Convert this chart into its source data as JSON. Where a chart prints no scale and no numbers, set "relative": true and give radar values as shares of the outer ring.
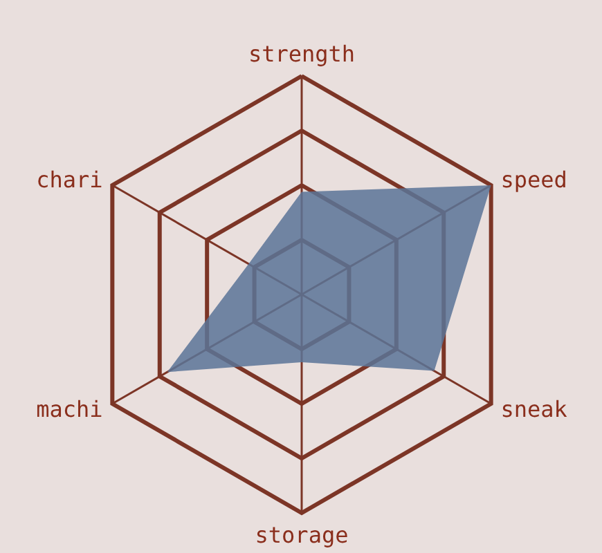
{
  "chart_data": {
    "type": "radar",
    "relative": true,
    "categories": [
      "strength",
      "speed",
      "sneak",
      "storage",
      "machi",
      "chari"
    ],
    "series": [
      {
        "color": "#5b7498",
        "values": [
          0.47,
          1,
          0.7,
          0.31,
          0.71,
          0.28
        ]
      }
    ]
  }
}
